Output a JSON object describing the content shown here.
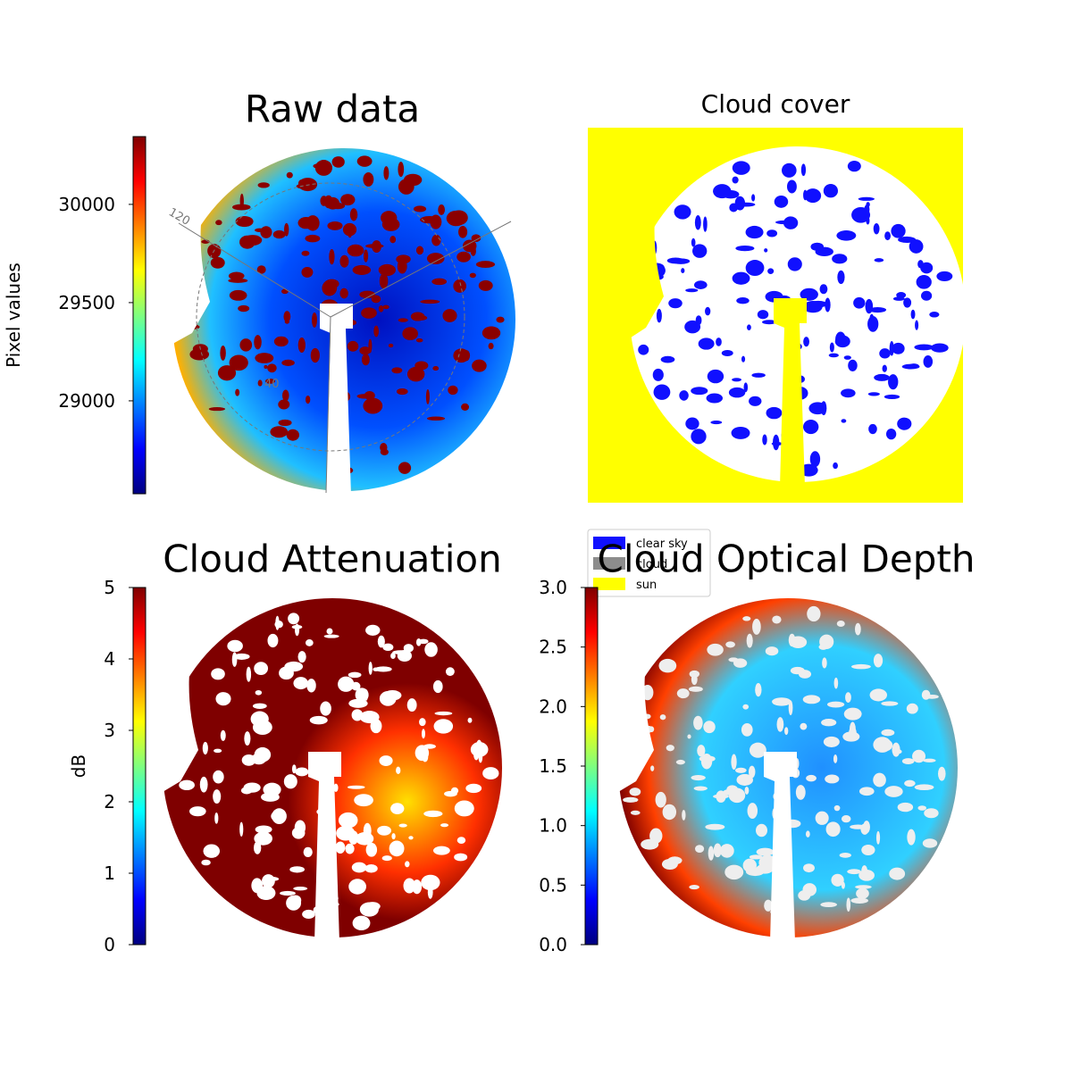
{
  "chart_data": [
    {
      "type": "image",
      "title": "Raw data",
      "colorbar_label": "Pixel values",
      "colormap": "jet",
      "ylim": [
        28527,
        30345
      ],
      "yticks": [
        29000,
        29500,
        30000
      ],
      "annotations": [
        "120",
        "40"
      ]
    },
    {
      "type": "categorical_image",
      "title": "Cloud cover",
      "legend": [
        {
          "name": "clear sky",
          "color": "#1010ff"
        },
        {
          "name": "cloud",
          "color": "#8c8c8c"
        },
        {
          "name": "sun",
          "color": "#ffff00"
        }
      ]
    },
    {
      "type": "image",
      "title": "Cloud Attenuation",
      "colorbar_label": "dB",
      "colormap": "jet",
      "ylim": [
        0,
        5
      ],
      "yticks": [
        0,
        1,
        2,
        3,
        4,
        5
      ]
    },
    {
      "type": "image",
      "title": "Cloud Optical Depth",
      "colormap": "jet",
      "ylim": [
        0,
        3
      ],
      "yticks": [
        {
          "value": 0,
          "label": "0.0"
        },
        0.5,
        {
          "value": 1,
          "label": "1.0"
        },
        1.5,
        {
          "value": 2,
          "label": "2.0"
        },
        2.5,
        {
          "value": 3,
          "label": "3.0"
        }
      ]
    }
  ]
}
